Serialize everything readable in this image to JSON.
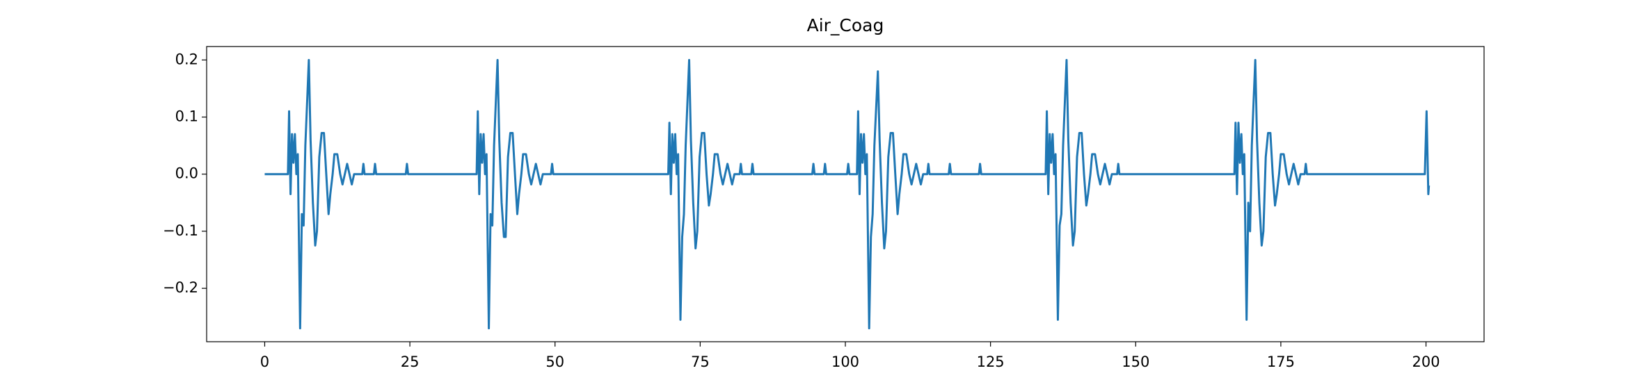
{
  "chart_data": {
    "type": "line",
    "title": "Air_Coag",
    "x": [
      0,
      4,
      4.2,
      4.45,
      4.7,
      4.95,
      5.2,
      5.45,
      5.7,
      6.1,
      6.4,
      6.7,
      7,
      7.6,
      7.9,
      8.3,
      8.7,
      9,
      9.4,
      9.8,
      10.2,
      10.6,
      11,
      11.3,
      11.7,
      12,
      12.5,
      13,
      13.4,
      13.8,
      14.2,
      14.6,
      15,
      15.4,
      16.8,
      17,
      17.2,
      18.8,
      19,
      19.2,
      24.3,
      24.5,
      24.7,
      36.5,
      36.7,
      36.95,
      37.2,
      37.45,
      37.7,
      37.95,
      38.2,
      38.6,
      38.9,
      39.2,
      39.5,
      40.1,
      40.4,
      40.8,
      41.2,
      41.5,
      41.9,
      42.3,
      42.7,
      43.1,
      43.5,
      43.8,
      44.2,
      44.5,
      45,
      45.5,
      45.9,
      46.3,
      46.7,
      47.1,
      47.5,
      47.9,
      49.3,
      49.5,
      49.7,
      69.5,
      69.7,
      69.95,
      70.2,
      70.45,
      70.7,
      70.95,
      71.2,
      71.6,
      71.9,
      72.2,
      72.5,
      73.1,
      73.4,
      73.8,
      74.2,
      74.5,
      74.9,
      75.3,
      75.7,
      76.1,
      76.5,
      76.8,
      77.2,
      77.5,
      78,
      78.5,
      78.9,
      79.3,
      79.7,
      80.1,
      80.5,
      80.9,
      81.8,
      82,
      82.2,
      83.8,
      84,
      84.2,
      94.3,
      94.5,
      94.7,
      96.3,
      96.5,
      96.7,
      100.3,
      100.5,
      100.7,
      102,
      102.2,
      102.45,
      102.7,
      102.95,
      103.2,
      103.45,
      103.7,
      104.1,
      104.4,
      104.7,
      105,
      105.6,
      105.9,
      106.3,
      106.7,
      107,
      107.4,
      107.8,
      108.2,
      108.6,
      109,
      109.3,
      109.7,
      110,
      110.5,
      111,
      111.4,
      111.8,
      112.2,
      112.6,
      113,
      113.4,
      114.1,
      114.3,
      114.5,
      117.8,
      118,
      118.2,
      123,
      123.2,
      123.4,
      134.5,
      134.7,
      134.95,
      135.2,
      135.45,
      135.7,
      135.95,
      136.2,
      136.6,
      136.9,
      137.2,
      137.5,
      138.1,
      138.4,
      138.8,
      139.2,
      139.5,
      139.9,
      140.3,
      140.7,
      141.1,
      141.5,
      141.8,
      142.2,
      142.5,
      143,
      143.5,
      143.9,
      144.3,
      144.7,
      145.1,
      145.5,
      145.9,
      146.8,
      147,
      147.2,
      167,
      167.2,
      167.45,
      167.7,
      167.95,
      168.2,
      168.45,
      168.7,
      169.1,
      169.4,
      169.7,
      170,
      170.6,
      170.9,
      171.3,
      171.7,
      172,
      172.4,
      172.8,
      173.2,
      173.6,
      174,
      174.3,
      174.7,
      175,
      175.5,
      176,
      176.4,
      176.8,
      177.2,
      177.6,
      178,
      178.4,
      179.1,
      179.3,
      179.5,
      199.8,
      200.1,
      200.4,
      200.5
    ],
    "series": [
      {
        "color": "#1f77b4",
        "values": [
          0,
          0,
          0.11,
          -0.035,
          0.07,
          0.02,
          0.07,
          0,
          0.035,
          -0.27,
          -0.07,
          -0.09,
          0.05,
          0.2,
          0.06,
          -0.05,
          -0.125,
          -0.1,
          0.03,
          0.072,
          0.072,
          0,
          -0.07,
          -0.035,
          0,
          0.035,
          0.035,
          0,
          -0.018,
          0,
          0.018,
          0,
          -0.018,
          0,
          0,
          0.018,
          0,
          0,
          0.018,
          0,
          0,
          0.018,
          0,
          0,
          0.11,
          -0.035,
          0.07,
          0.02,
          0.07,
          0,
          0.035,
          -0.27,
          -0.07,
          -0.09,
          0.05,
          0.2,
          0.06,
          -0.05,
          -0.11,
          -0.11,
          0.03,
          0.072,
          0.072,
          0,
          -0.07,
          -0.035,
          0,
          0.035,
          0.035,
          0,
          -0.018,
          0,
          0.018,
          0,
          -0.018,
          0,
          0,
          0.018,
          0,
          0,
          0.09,
          -0.035,
          0.07,
          0.02,
          0.07,
          0,
          0.035,
          -0.255,
          -0.11,
          -0.07,
          0.05,
          0.2,
          0.06,
          -0.05,
          -0.13,
          -0.1,
          0.03,
          0.072,
          0.072,
          0,
          -0.055,
          -0.035,
          0,
          0.035,
          0.035,
          0,
          -0.018,
          0,
          0.018,
          0,
          -0.018,
          0,
          0,
          0.018,
          0,
          0,
          0.018,
          0,
          0,
          0.018,
          0,
          0,
          0.018,
          0,
          0,
          0.018,
          0,
          0,
          0.11,
          -0.035,
          0.07,
          0.02,
          0.07,
          0,
          0.035,
          -0.27,
          -0.11,
          -0.07,
          0.05,
          0.18,
          0.06,
          -0.05,
          -0.13,
          -0.1,
          0.03,
          0.072,
          0.072,
          0,
          -0.07,
          -0.035,
          0,
          0.035,
          0.035,
          0,
          -0.018,
          0,
          0.018,
          0,
          -0.018,
          0,
          0,
          0.018,
          0,
          0,
          0.018,
          0,
          0,
          0.018,
          0,
          0,
          0.11,
          -0.035,
          0.07,
          0.02,
          0.07,
          0,
          0.035,
          -0.255,
          -0.09,
          -0.07,
          0.05,
          0.2,
          0.06,
          -0.05,
          -0.125,
          -0.1,
          0.03,
          0.072,
          0.072,
          0,
          -0.055,
          -0.035,
          0,
          0.035,
          0.035,
          0,
          -0.018,
          0,
          0.018,
          0,
          -0.018,
          0,
          0,
          0.018,
          0,
          0,
          0.09,
          -0.035,
          0.09,
          0.02,
          0.07,
          0,
          0.035,
          -0.255,
          -0.05,
          -0.1,
          0.05,
          0.2,
          0.06,
          -0.05,
          -0.125,
          -0.1,
          0.03,
          0.072,
          0.072,
          0,
          -0.055,
          -0.035,
          0,
          0.035,
          0.035,
          0,
          -0.018,
          0,
          0.018,
          0,
          -0.018,
          0,
          0,
          0.018,
          0,
          0,
          0.11,
          -0.035,
          -0.02
        ]
      }
    ],
    "xlim": [
      -10,
      210
    ],
    "xticks": [
      0,
      25,
      50,
      75,
      100,
      125,
      150,
      175,
      200
    ],
    "ylim": [
      -0.2935,
      0.2235
    ],
    "yticks": [
      {
        "value": -0.2,
        "label": "−0.2"
      },
      {
        "value": -0.1,
        "label": "−0.1"
      },
      {
        "value": 0,
        "label": "0.0"
      },
      0.1,
      0.2
    ]
  }
}
